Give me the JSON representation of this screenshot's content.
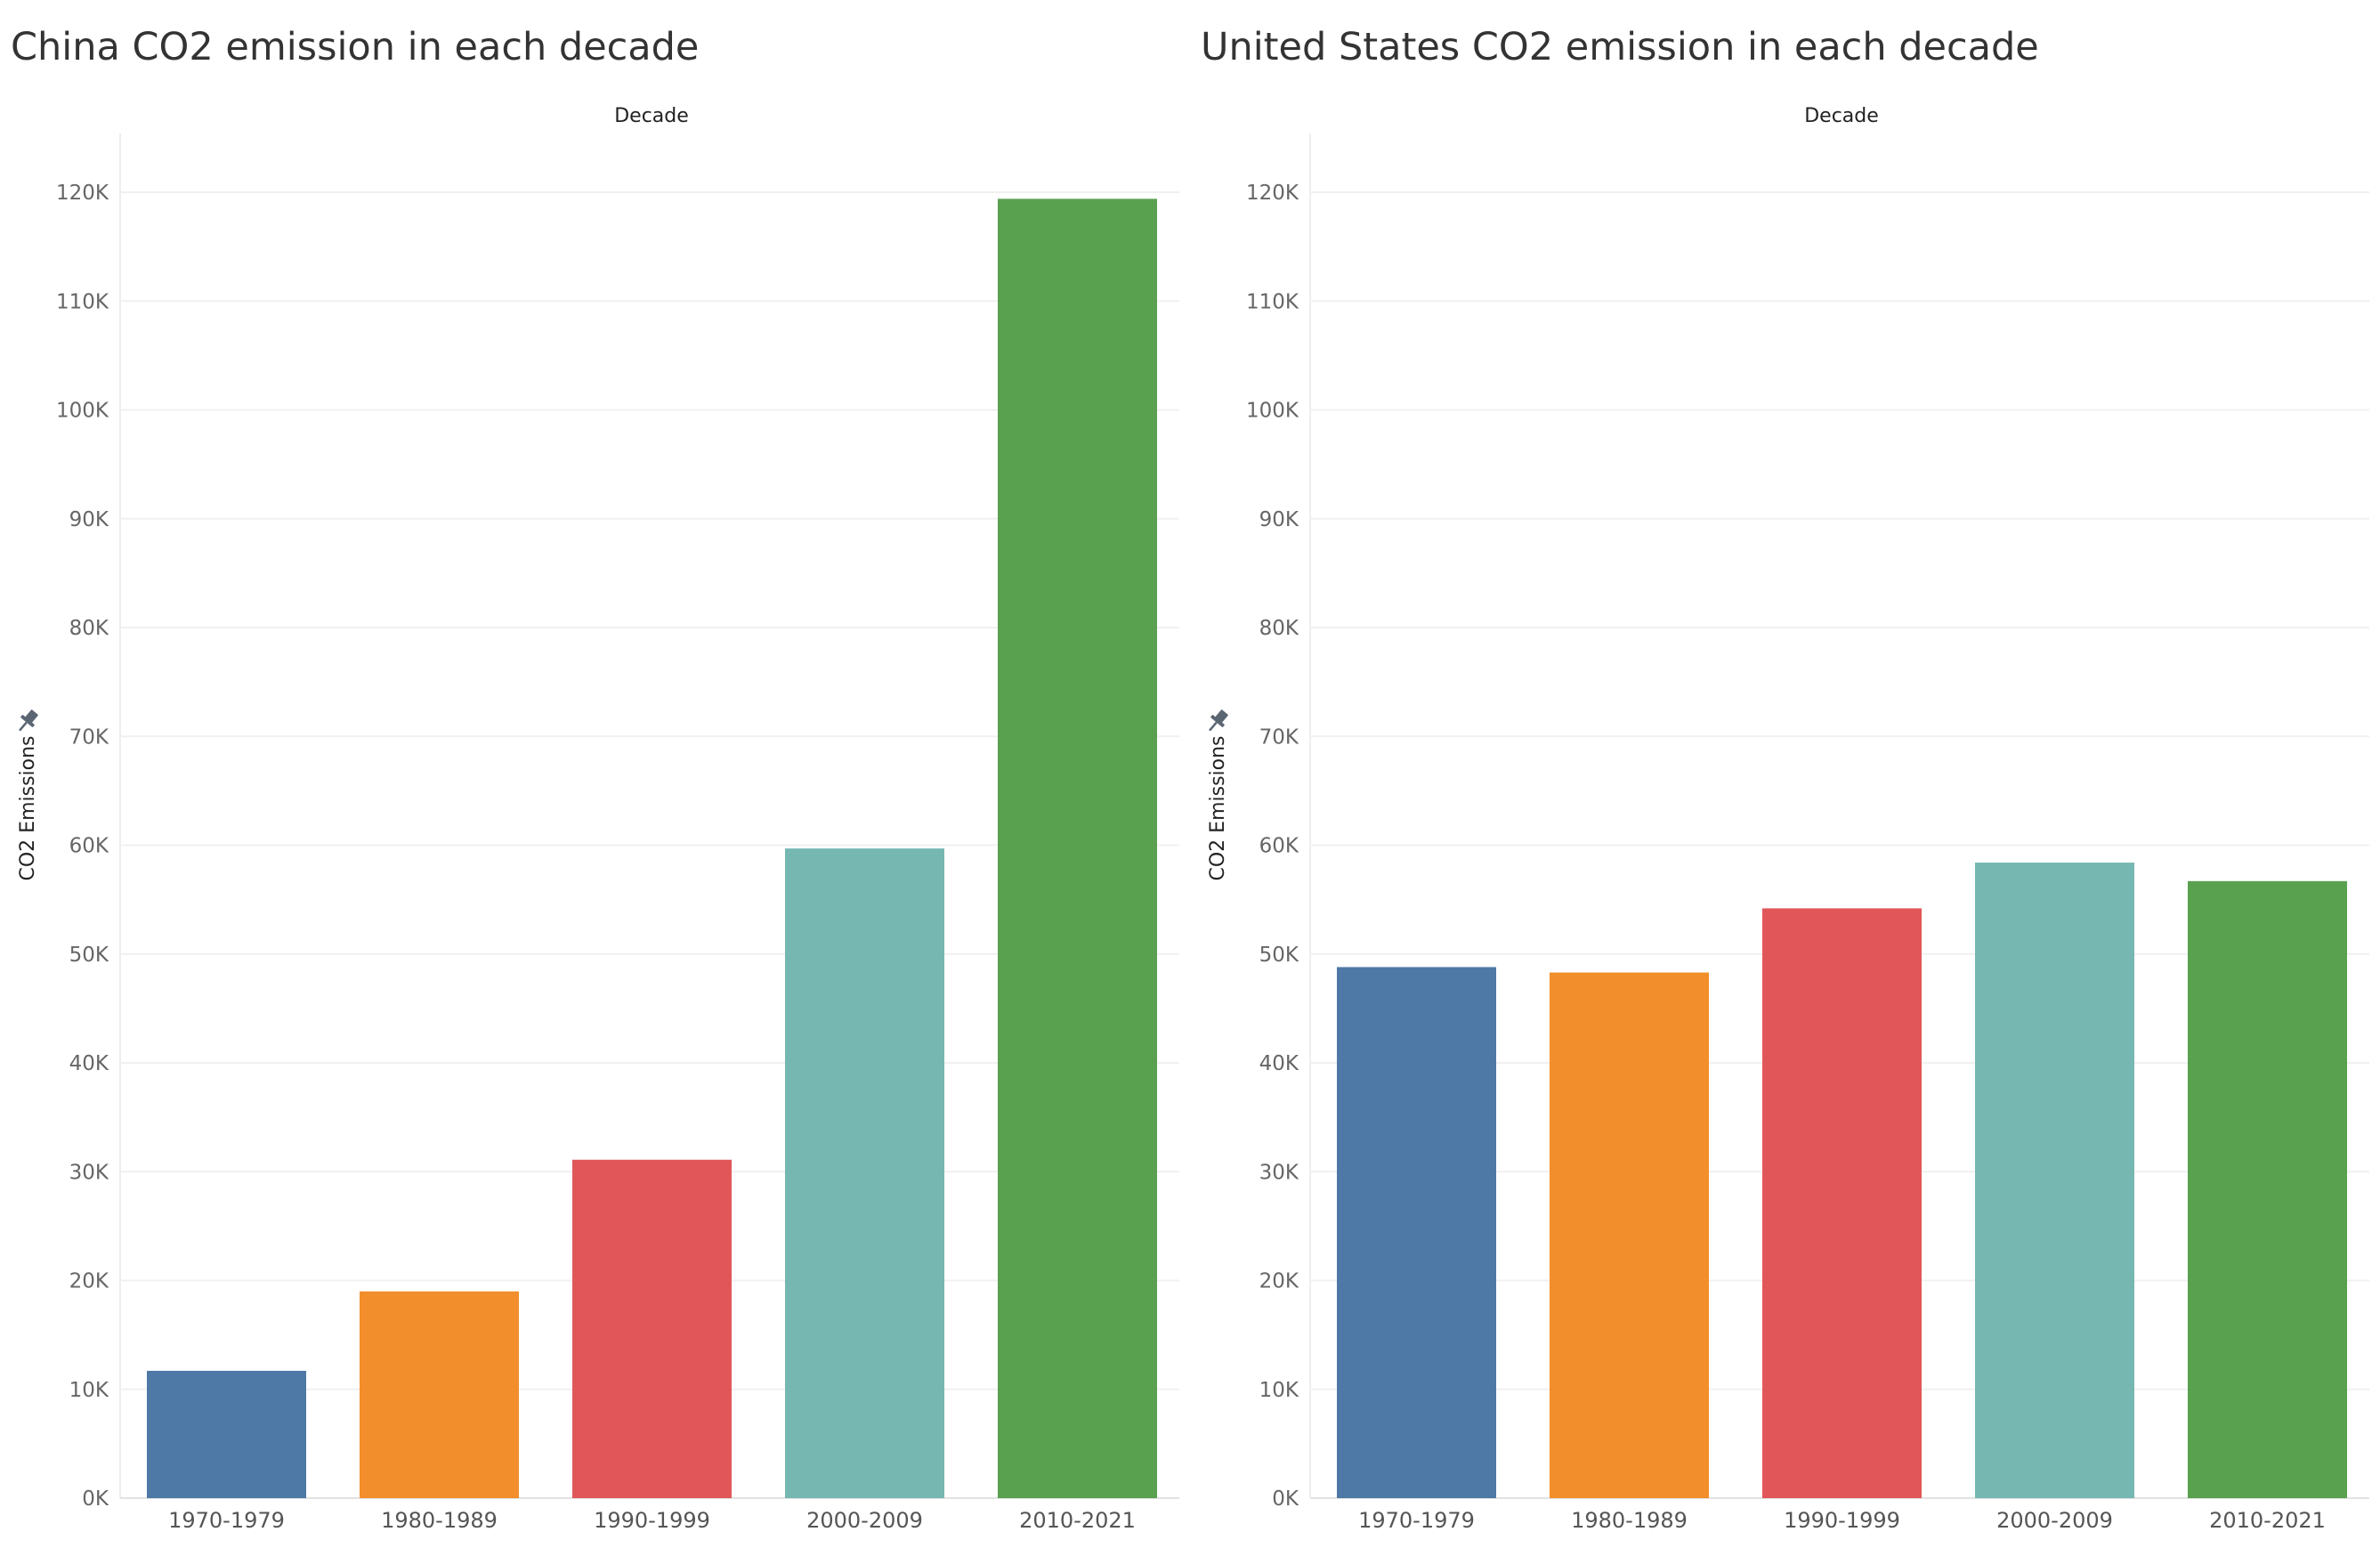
{
  "chart_data": [
    {
      "type": "bar",
      "title": "China CO2 emission in each decade",
      "column_header": "Decade",
      "ylabel": "CO2 Emissions",
      "categories": [
        "1970-1979",
        "1980-1989",
        "1990-1999",
        "2000-2009",
        "2010-2021"
      ],
      "values": [
        11700,
        19000,
        31100,
        59700,
        119400
      ],
      "colors": [
        "#4e79a7",
        "#f28e2b",
        "#e15759",
        "#76b7b2",
        "#59a14f"
      ],
      "ylim": [
        0,
        125000
      ],
      "yticks": [
        0,
        10000,
        20000,
        30000,
        40000,
        50000,
        60000,
        70000,
        80000,
        90000,
        100000,
        110000,
        120000
      ],
      "ytick_labels": [
        "0K",
        "10K",
        "20K",
        "30K",
        "40K",
        "50K",
        "60K",
        "70K",
        "80K",
        "90K",
        "100K",
        "110K",
        "120K"
      ],
      "grid": true,
      "legend": "none",
      "axis_icon": "pin-icon"
    },
    {
      "type": "bar",
      "title": "United States CO2 emission in each decade",
      "column_header": "Decade",
      "ylabel": "CO2 Emissions",
      "categories": [
        "1970-1979",
        "1980-1989",
        "1990-1999",
        "2000-2009",
        "2010-2021"
      ],
      "values": [
        48800,
        48300,
        54200,
        58400,
        56700
      ],
      "colors": [
        "#4e79a7",
        "#f28e2b",
        "#e15759",
        "#76b7b2",
        "#59a14f"
      ],
      "ylim": [
        0,
        125000
      ],
      "yticks": [
        0,
        10000,
        20000,
        30000,
        40000,
        50000,
        60000,
        70000,
        80000,
        90000,
        100000,
        110000,
        120000
      ],
      "ytick_labels": [
        "0K",
        "10K",
        "20K",
        "30K",
        "40K",
        "50K",
        "60K",
        "70K",
        "80K",
        "90K",
        "100K",
        "110K",
        "120K"
      ],
      "grid": true,
      "legend": "none",
      "axis_icon": "pin-icon"
    }
  ]
}
